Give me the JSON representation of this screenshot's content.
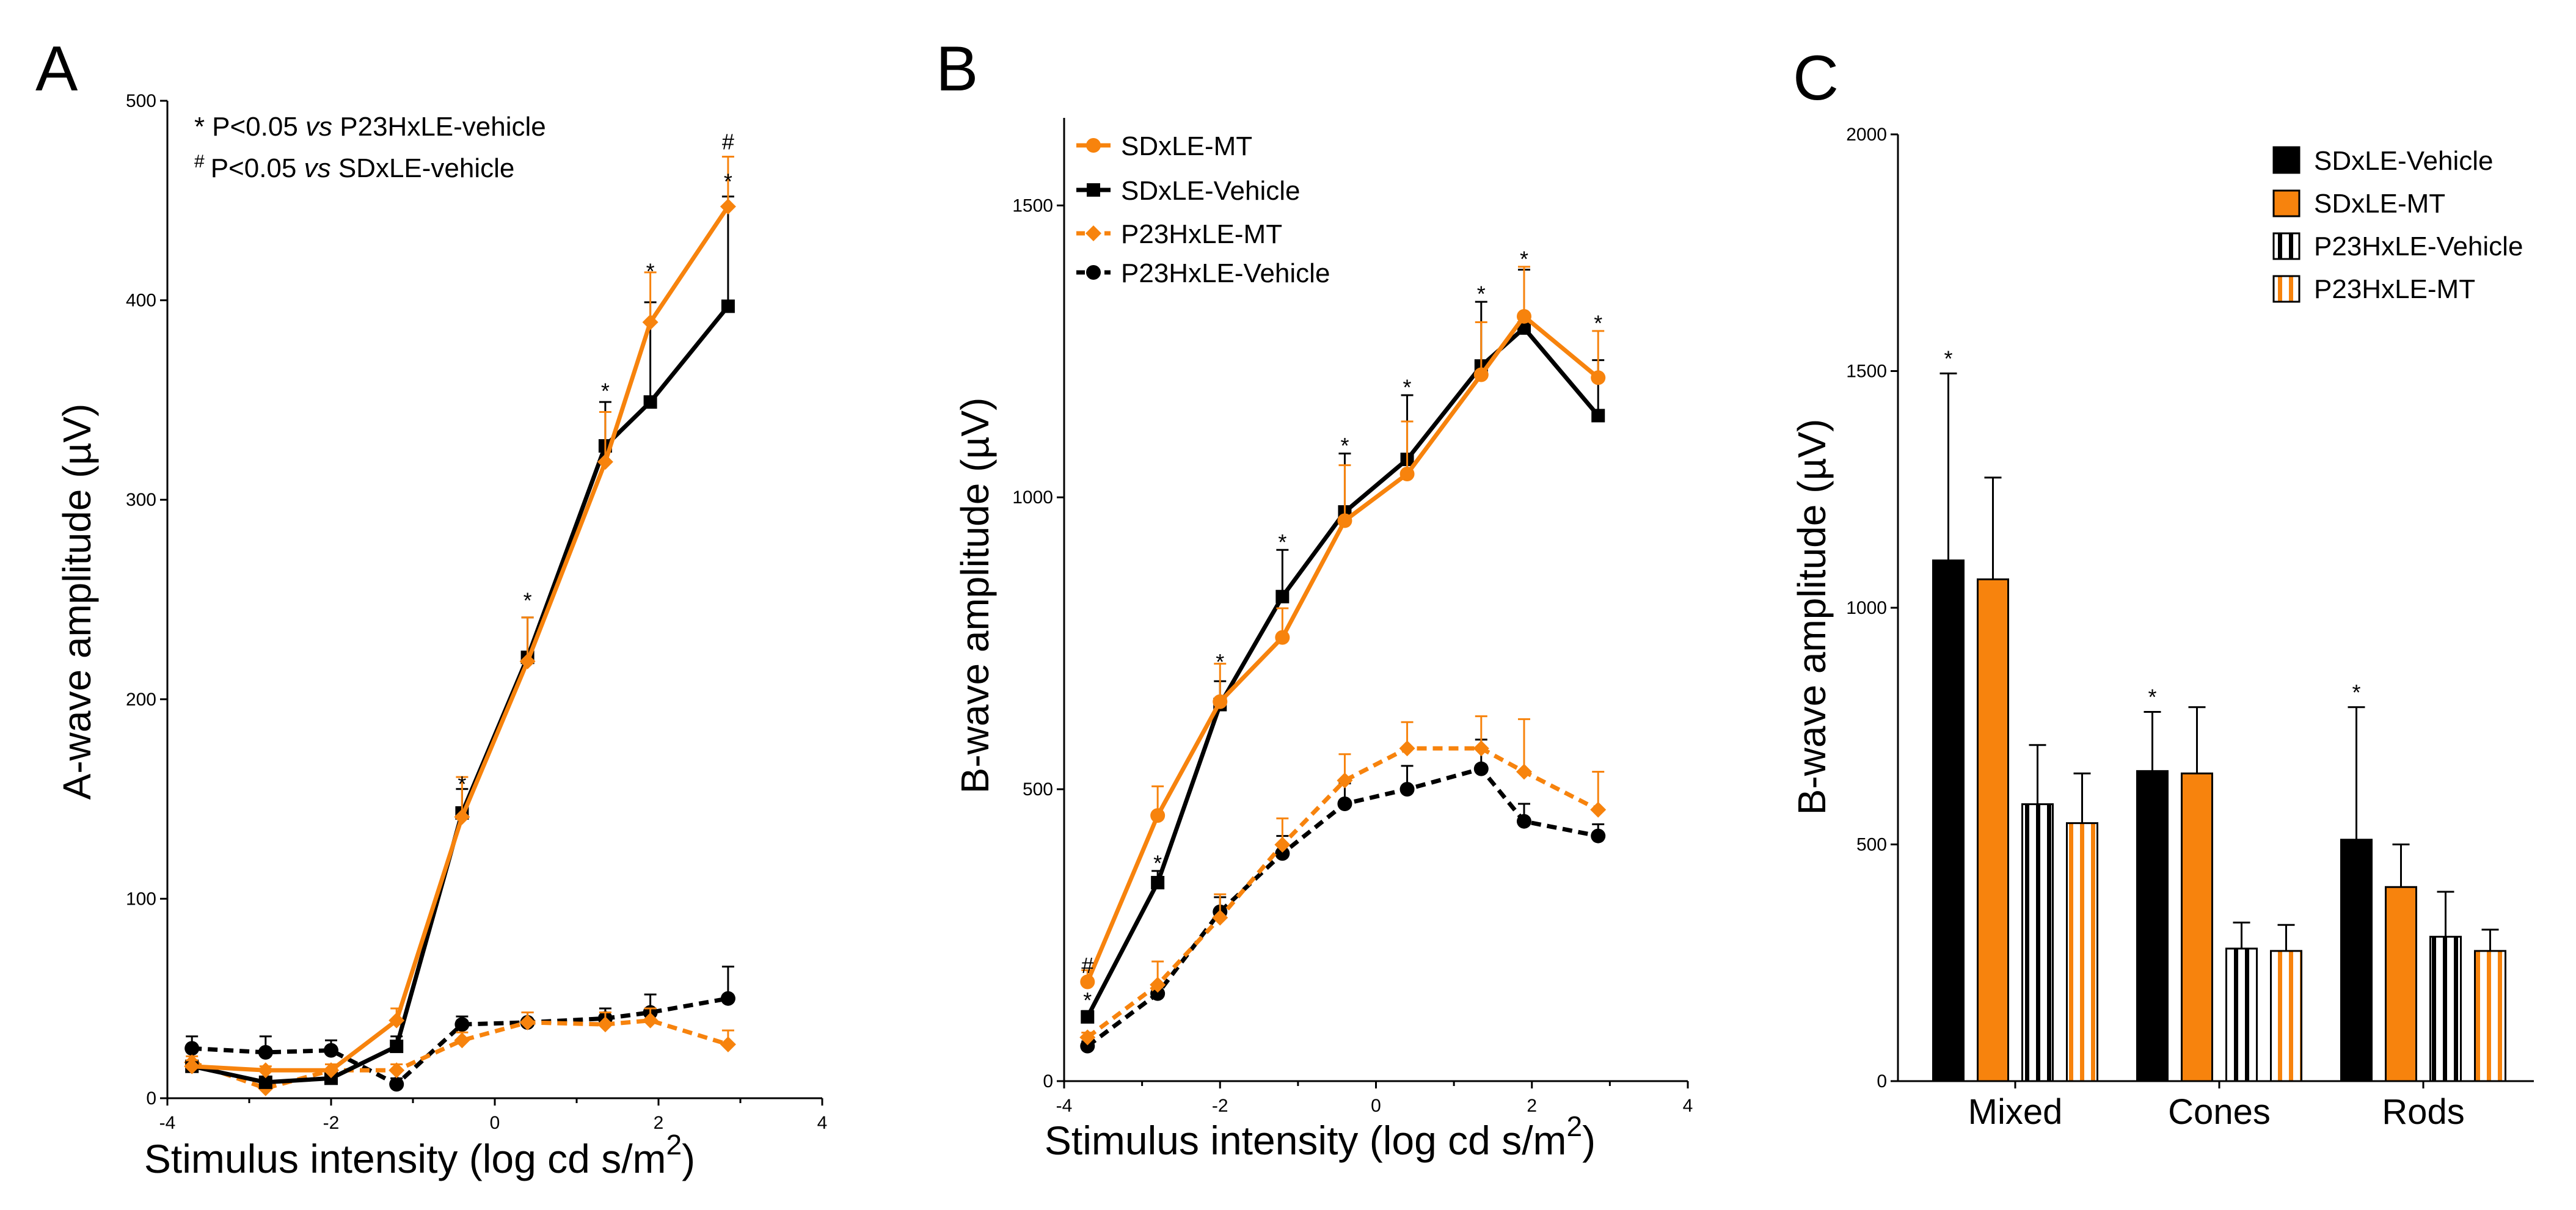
{
  "colors": {
    "black": "#000000",
    "orange": "#F7830D"
  },
  "chart_data": [
    {
      "id": "A",
      "type": "line",
      "panel_label": "A",
      "title": "",
      "xlabel": "Stimulus intensity (log cd s/m",
      "xlabel_sup": "2",
      "xlabel_end": ")",
      "ylabel": "A-wave amplitude (µV)",
      "xlim": [
        -4,
        4
      ],
      "ylim": [
        0,
        500
      ],
      "xticks": [
        "-4",
        "-2",
        "0",
        "2",
        "4"
      ],
      "yticks": [
        "0",
        "100",
        "200",
        "300",
        "400",
        "500"
      ],
      "annotations": [
        {
          "symbol": "*",
          "text": "P<0.05 ",
          "italic": "vs",
          "text2": " P23HxLE-vehicle"
        },
        {
          "symbol": "#",
          "text": "P<0.05 ",
          "italic": "vs",
          "text2": " SDxLE-vehicle"
        }
      ],
      "x": [
        -3.7,
        -2.8,
        -2.0,
        -1.2,
        -0.4,
        0.4,
        1.35,
        1.9,
        2.85
      ],
      "series": [
        {
          "name": "SDxLE-Vehicle",
          "color": "#000000",
          "marker": "square",
          "dash": false,
          "values": [
            16,
            8,
            10,
            26,
            143,
            221,
            327,
            349,
            397
          ],
          "errors": [
            3,
            2,
            3,
            5,
            12,
            20,
            22,
            50,
            55
          ]
        },
        {
          "name": "SDxLE-MT",
          "color": "#F7830D",
          "marker": "diamond",
          "dash": false,
          "values": [
            16,
            14,
            14,
            39,
            141,
            219,
            319,
            389,
            447
          ],
          "errors": [
            3,
            2,
            3,
            6,
            20,
            22,
            25,
            25,
            25
          ]
        },
        {
          "name": "P23HxLE-Vehicle",
          "color": "#000000",
          "marker": "circle",
          "dash": true,
          "values": [
            25,
            23,
            24,
            7,
            37,
            38,
            40,
            43,
            50
          ],
          "errors": [
            6,
            8,
            5,
            3,
            4,
            5,
            5,
            9,
            16
          ]
        },
        {
          "name": "P23HxLE-MT",
          "color": "#F7830D",
          "marker": "diamond",
          "dash": true,
          "values": [
            18,
            5,
            14,
            14,
            29,
            38,
            37,
            39,
            27
          ],
          "errors": [
            3,
            2,
            3,
            3,
            4,
            5,
            6,
            6,
            7
          ]
        }
      ],
      "sig_marks": [
        {
          "x": -0.4,
          "y": 158,
          "text": "*"
        },
        {
          "x": 0.4,
          "y": 250,
          "text": "*"
        },
        {
          "x": 1.35,
          "y": 355,
          "text": "*"
        },
        {
          "x": 1.9,
          "y": 415,
          "text": "*"
        },
        {
          "x": 2.85,
          "y": 460,
          "text": "*"
        },
        {
          "x": 2.85,
          "y": 480,
          "text": "#"
        }
      ]
    },
    {
      "id": "B",
      "type": "line",
      "panel_label": "B",
      "title": "",
      "xlabel": "Stimulus intensity (log cd s/m",
      "xlabel_sup": "2",
      "xlabel_end": ")",
      "ylabel": "B-wave amplitude (µV)",
      "xlim": [
        -4,
        4
      ],
      "ylim": [
        0,
        1650
      ],
      "xticks": [
        "-4",
        "-2",
        "0",
        "2",
        "4"
      ],
      "ytick_values": [
        0,
        500,
        1000,
        1500
      ],
      "yticks": [
        "0",
        "500",
        "1000",
        "1500"
      ],
      "legend": [
        {
          "name": "SDxLE-MT",
          "color": "#F7830D",
          "marker": "circle"
        },
        {
          "name": "SDxLE-Vehicle",
          "color": "#000000",
          "marker": "square"
        },
        {
          "name": "P23HxLE-MT",
          "color": "#F7830D",
          "marker": "diamond"
        },
        {
          "name": "P23HxLE-Vehicle",
          "color": "#000000",
          "marker": "circle"
        }
      ],
      "x": [
        -3.7,
        -2.8,
        -2.0,
        -1.2,
        -0.4,
        0.4,
        1.35,
        1.9,
        2.85
      ],
      "series": [
        {
          "name": "SDxLE-Vehicle",
          "color": "#000000",
          "marker": "square",
          "dash": false,
          "values": [
            110,
            340,
            645,
            830,
            975,
            1065,
            1225,
            1290,
            1140
          ],
          "errors": [
            10,
            20,
            40,
            80,
            100,
            110,
            110,
            100,
            95
          ]
        },
        {
          "name": "SDxLE-MT",
          "color": "#F7830D",
          "marker": "circle",
          "dash": false,
          "values": [
            170,
            455,
            650,
            760,
            960,
            1040,
            1210,
            1310,
            1205
          ],
          "errors": [
            20,
            50,
            65,
            50,
            95,
            90,
            90,
            85,
            80
          ]
        },
        {
          "name": "P23HxLE-Vehicle",
          "color": "#000000",
          "marker": "circle",
          "dash": true,
          "values": [
            60,
            150,
            290,
            390,
            475,
            500,
            535,
            445,
            420
          ],
          "errors": [
            8,
            15,
            25,
            30,
            35,
            40,
            50,
            30,
            20
          ]
        },
        {
          "name": "P23HxLE-MT",
          "color": "#F7830D",
          "marker": "diamond",
          "dash": true,
          "values": [
            75,
            165,
            280,
            405,
            515,
            570,
            570,
            530,
            465
          ],
          "errors": [
            8,
            40,
            40,
            45,
            45,
            45,
            55,
            90,
            65
          ]
        }
      ],
      "sig_marks": [
        {
          "x": -3.7,
          "y": 200,
          "text": "#"
        },
        {
          "x": -3.7,
          "y": 140,
          "text": "*"
        },
        {
          "x": -2.8,
          "y": 375,
          "text": "*"
        },
        {
          "x": -2.0,
          "y": 720,
          "text": "*"
        },
        {
          "x": -1.2,
          "y": 925,
          "text": "*"
        },
        {
          "x": -0.4,
          "y": 1090,
          "text": "*"
        },
        {
          "x": 0.4,
          "y": 1190,
          "text": "*"
        },
        {
          "x": 1.35,
          "y": 1350,
          "text": "*"
        },
        {
          "x": 1.9,
          "y": 1410,
          "text": "*"
        },
        {
          "x": 2.85,
          "y": 1300,
          "text": "*"
        }
      ]
    },
    {
      "id": "C",
      "type": "bar",
      "panel_label": "C",
      "title": "",
      "xlabel": "",
      "ylabel": "B-wave amplitude (µV)",
      "ylim": [
        0,
        2000
      ],
      "ytick_values": [
        0,
        500,
        1000,
        1500,
        2000
      ],
      "yticks": [
        "0",
        "500",
        "1000",
        "1500",
        "2000"
      ],
      "categories": [
        "Mixed",
        "Cones",
        "Rods"
      ],
      "series": [
        {
          "name": "SDxLE-Vehicle",
          "fill": "solid-black",
          "values": [
            1100,
            655,
            510
          ],
          "errors": [
            395,
            125,
            280
          ]
        },
        {
          "name": "SDxLE-MT",
          "fill": "solid-orange",
          "values": [
            1060,
            650,
            410
          ],
          "errors": [
            215,
            140,
            90
          ]
        },
        {
          "name": "P23HxLE-Vehicle",
          "fill": "stripe-black",
          "values": [
            585,
            280,
            305
          ],
          "errors": [
            125,
            55,
            95
          ]
        },
        {
          "name": "P23HxLE-MT",
          "fill": "stripe-orange",
          "values": [
            545,
            275,
            275
          ],
          "errors": [
            105,
            55,
            45
          ]
        }
      ],
      "sig_marks": [
        {
          "category": 0,
          "series": 0,
          "text": "*"
        },
        {
          "category": 1,
          "series": 0,
          "text": "*"
        },
        {
          "category": 2,
          "series": 0,
          "text": "*"
        }
      ],
      "legend": [
        "SDxLE-Vehicle",
        "SDxLE-MT",
        "P23HxLE-Vehicle",
        "P23HxLE-MT"
      ]
    }
  ]
}
